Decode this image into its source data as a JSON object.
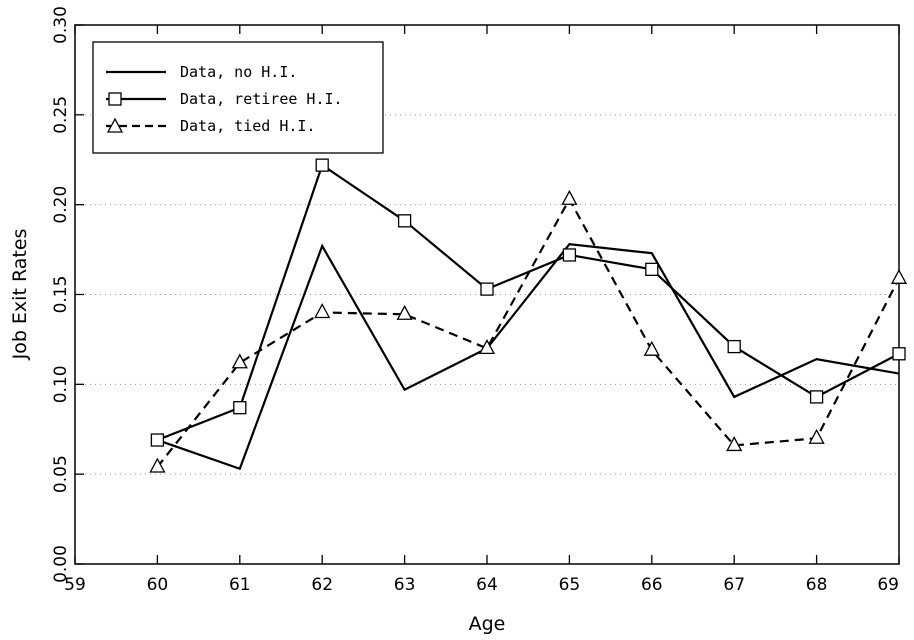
{
  "chart_data": {
    "type": "line",
    "xlabel": "Age",
    "ylabel": "Job Exit Rates",
    "xlim": [
      59,
      69
    ],
    "ylim": [
      0.0,
      0.3
    ],
    "x_ticks": [
      "59",
      "60",
      "61",
      "62",
      "63",
      "64",
      "65",
      "66",
      "67",
      "68",
      "69"
    ],
    "y_ticks": [
      "0.00",
      "0.05",
      "0.10",
      "0.15",
      "0.20",
      "0.25",
      "0.30"
    ],
    "grid": "horizontal dotted",
    "legend_position": "top-left",
    "series": [
      {
        "name": "Data, no H.I.",
        "style": "solid",
        "marker": "none",
        "x": [
          60,
          61,
          62,
          63,
          64,
          65,
          66,
          67,
          68,
          69
        ],
        "y": [
          0.069,
          0.053,
          0.177,
          0.097,
          0.12,
          0.178,
          0.173,
          0.093,
          0.114,
          0.106
        ]
      },
      {
        "name": "Data, retiree H.I.",
        "style": "solid",
        "marker": "square",
        "x": [
          60,
          61,
          62,
          63,
          64,
          65,
          66,
          67,
          68,
          69
        ],
        "y": [
          0.069,
          0.087,
          0.222,
          0.191,
          0.153,
          0.172,
          0.164,
          0.121,
          0.093,
          0.117
        ]
      },
      {
        "name": "Data, tied H.I.",
        "style": "dashed",
        "marker": "triangle",
        "x": [
          60,
          61,
          62,
          63,
          64,
          65,
          66,
          67,
          68,
          69
        ],
        "y": [
          0.054,
          0.112,
          0.14,
          0.139,
          0.12,
          0.203,
          0.119,
          0.066,
          0.07,
          0.159
        ]
      }
    ]
  }
}
